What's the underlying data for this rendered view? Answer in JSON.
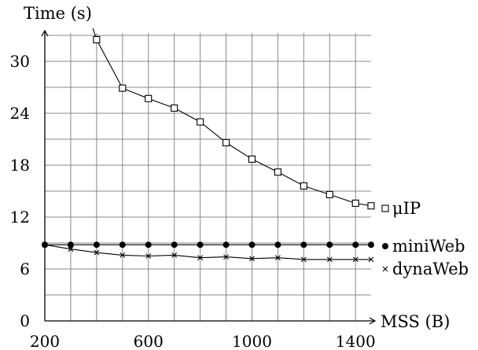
{
  "chart_data": {
    "type": "line",
    "xlabel": "MSS (B)",
    "ylabel": "Time (s)",
    "xlim": [
      200,
      1460
    ],
    "ylim": [
      0,
      35
    ],
    "x_ticks": [
      200,
      600,
      1000,
      1400
    ],
    "y_ticks": [
      0,
      6,
      12,
      18,
      24,
      30
    ],
    "grid": true,
    "legend_placement": "right, beside line ends",
    "series": [
      {
        "name": "μIP",
        "marker": "square",
        "x": [
          400,
          500,
          600,
          700,
          800,
          900,
          1000,
          1100,
          1200,
          1300,
          1400,
          1460
        ],
        "y": [
          32.5,
          26.9,
          25.7,
          24.6,
          23.0,
          20.6,
          18.7,
          17.2,
          15.6,
          14.6,
          13.6,
          13.3
        ]
      },
      {
        "name": "miniWeb",
        "marker": "dot",
        "x": [
          200,
          300,
          400,
          500,
          600,
          700,
          800,
          900,
          1000,
          1100,
          1200,
          1300,
          1400,
          1460
        ],
        "y": [
          8.8,
          8.8,
          8.8,
          8.8,
          8.8,
          8.8,
          8.8,
          8.8,
          8.8,
          8.8,
          8.8,
          8.8,
          8.8,
          8.8
        ]
      },
      {
        "name": "dynaWeb",
        "marker": "cross",
        "x": [
          200,
          300,
          400,
          500,
          600,
          700,
          800,
          900,
          1000,
          1100,
          1200,
          1300,
          1400,
          1460
        ],
        "y": [
          8.8,
          8.3,
          7.9,
          7.6,
          7.5,
          7.6,
          7.3,
          7.4,
          7.2,
          7.3,
          7.1,
          7.1,
          7.1,
          7.1
        ]
      }
    ]
  }
}
